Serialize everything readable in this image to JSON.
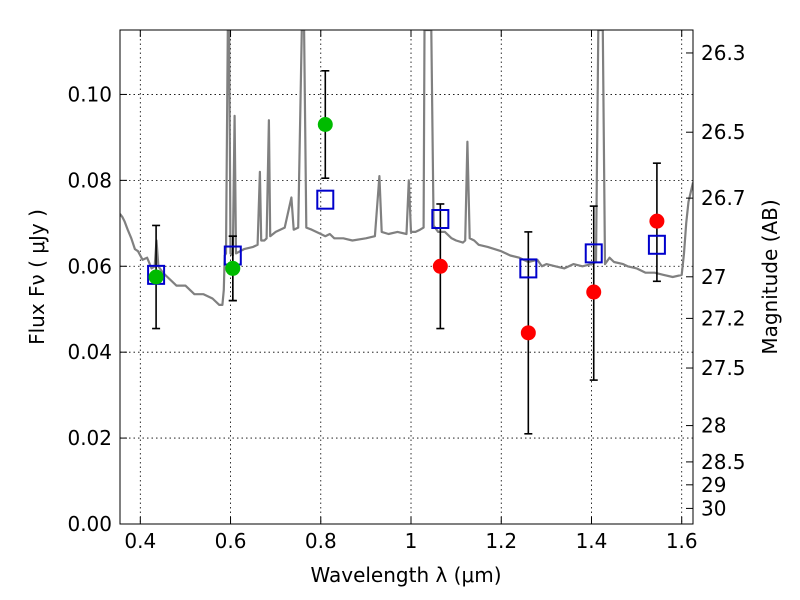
{
  "chart_data": {
    "type": "scatter",
    "xlabel": "Wavelength  λ (μm)",
    "ylabel": "Flux  Fν  ( μJy )",
    "y2label": "Magnitude (AB)",
    "xlim": [
      0.355,
      1.625
    ],
    "ylim": [
      0.0,
      0.115
    ],
    "grid": true,
    "x_ticks": [
      {
        "value": 0.4,
        "label": "0.4"
      },
      {
        "value": 0.6,
        "label": "0.6"
      },
      {
        "value": 0.8,
        "label": "0.8"
      },
      {
        "value": 1.0,
        "label": "1"
      },
      {
        "value": 1.2,
        "label": "1.2"
      },
      {
        "value": 1.4,
        "label": "1.4"
      },
      {
        "value": 1.6,
        "label": "1.6"
      }
    ],
    "y_ticks": [
      {
        "value": 0.0,
        "label": "0.00"
      },
      {
        "value": 0.02,
        "label": "0.02"
      },
      {
        "value": 0.04,
        "label": "0.04"
      },
      {
        "value": 0.06,
        "label": "0.06"
      },
      {
        "value": 0.08,
        "label": "0.08"
      },
      {
        "value": 0.1,
        "label": "0.10"
      }
    ],
    "y2_ticks": [
      {
        "mag": 26.3,
        "label": "26.3"
      },
      {
        "mag": 26.5,
        "label": "26.5"
      },
      {
        "mag": 26.7,
        "label": "26.7"
      },
      {
        "mag": 27.0,
        "label": "27"
      },
      {
        "mag": 27.2,
        "label": "27.2"
      },
      {
        "mag": 27.5,
        "label": "27.5"
      },
      {
        "mag": 28.0,
        "label": "28"
      },
      {
        "mag": 28.5,
        "label": "28.5"
      },
      {
        "mag": 29.0,
        "label": "29"
      },
      {
        "mag": 30.0,
        "label": "30"
      }
    ],
    "colors": {
      "model": "#808080",
      "green": "#00bb00",
      "red": "#ff0000",
      "box": "#0000cc",
      "errorbar": "#000000"
    },
    "model_spectrum": [
      [
        0.355,
        0.0722
      ],
      [
        0.36,
        0.0715
      ],
      [
        0.365,
        0.0705
      ],
      [
        0.372,
        0.0685
      ],
      [
        0.38,
        0.0665
      ],
      [
        0.388,
        0.064
      ],
      [
        0.395,
        0.0635
      ],
      [
        0.405,
        0.0615
      ],
      [
        0.415,
        0.062
      ],
      [
        0.425,
        0.0595
      ],
      [
        0.432,
        0.06
      ],
      [
        0.436,
        0.066
      ],
      [
        0.44,
        0.06
      ],
      [
        0.45,
        0.0585
      ],
      [
        0.46,
        0.0575
      ],
      [
        0.48,
        0.0555
      ],
      [
        0.5,
        0.0555
      ],
      [
        0.52,
        0.0535
      ],
      [
        0.54,
        0.0535
      ],
      [
        0.56,
        0.0525
      ],
      [
        0.575,
        0.051
      ],
      [
        0.582,
        0.051
      ],
      [
        0.585,
        0.0545
      ],
      [
        0.587,
        0.0625
      ],
      [
        0.59,
        0.063
      ],
      [
        0.594,
        0.115
      ],
      [
        0.597,
        0.115
      ],
      [
        0.6,
        0.063
      ],
      [
        0.605,
        0.0625
      ],
      [
        0.609,
        0.095
      ],
      [
        0.612,
        0.063
      ],
      [
        0.63,
        0.064
      ],
      [
        0.65,
        0.0645
      ],
      [
        0.66,
        0.065
      ],
      [
        0.665,
        0.082
      ],
      [
        0.668,
        0.066
      ],
      [
        0.675,
        0.066
      ],
      [
        0.68,
        0.0665
      ],
      [
        0.685,
        0.094
      ],
      [
        0.688,
        0.067
      ],
      [
        0.7,
        0.068
      ],
      [
        0.72,
        0.069
      ],
      [
        0.735,
        0.076
      ],
      [
        0.74,
        0.0685
      ],
      [
        0.75,
        0.069
      ],
      [
        0.758,
        0.115
      ],
      [
        0.763,
        0.115
      ],
      [
        0.768,
        0.069
      ],
      [
        0.78,
        0.0685
      ],
      [
        0.79,
        0.068
      ],
      [
        0.8,
        0.0675
      ],
      [
        0.81,
        0.067
      ],
      [
        0.82,
        0.0675
      ],
      [
        0.83,
        0.0665
      ],
      [
        0.85,
        0.0665
      ],
      [
        0.87,
        0.066
      ],
      [
        0.9,
        0.0665
      ],
      [
        0.92,
        0.067
      ],
      [
        0.93,
        0.081
      ],
      [
        0.935,
        0.068
      ],
      [
        0.95,
        0.0675
      ],
      [
        0.97,
        0.068
      ],
      [
        0.99,
        0.0675
      ],
      [
        0.995,
        0.08
      ],
      [
        1.0,
        0.068
      ],
      [
        1.01,
        0.068
      ],
      [
        1.02,
        0.0685
      ],
      [
        1.028,
        0.069
      ],
      [
        1.03,
        0.115
      ],
      [
        1.036,
        0.115
      ],
      [
        1.04,
        0.115
      ],
      [
        1.045,
        0.115
      ],
      [
        1.05,
        0.0695
      ],
      [
        1.06,
        0.068
      ],
      [
        1.075,
        0.068
      ],
      [
        1.09,
        0.0665
      ],
      [
        1.1,
        0.066
      ],
      [
        1.115,
        0.0655
      ],
      [
        1.12,
        0.066
      ],
      [
        1.125,
        0.089
      ],
      [
        1.13,
        0.0665
      ],
      [
        1.14,
        0.066
      ],
      [
        1.15,
        0.065
      ],
      [
        1.17,
        0.0645
      ],
      [
        1.2,
        0.0635
      ],
      [
        1.22,
        0.0625
      ],
      [
        1.24,
        0.062
      ],
      [
        1.26,
        0.061
      ],
      [
        1.28,
        0.0615
      ],
      [
        1.29,
        0.06
      ],
      [
        1.3,
        0.0605
      ],
      [
        1.32,
        0.06
      ],
      [
        1.34,
        0.0595
      ],
      [
        1.36,
        0.0605
      ],
      [
        1.38,
        0.06
      ],
      [
        1.4,
        0.0605
      ],
      [
        1.41,
        0.061
      ],
      [
        1.415,
        0.115
      ],
      [
        1.425,
        0.115
      ],
      [
        1.43,
        0.0605
      ],
      [
        1.44,
        0.062
      ],
      [
        1.45,
        0.061
      ],
      [
        1.47,
        0.0605
      ],
      [
        1.48,
        0.06
      ],
      [
        1.5,
        0.0595
      ],
      [
        1.52,
        0.0585
      ],
      [
        1.54,
        0.0585
      ],
      [
        1.56,
        0.058
      ],
      [
        1.58,
        0.0575
      ],
      [
        1.6,
        0.058
      ],
      [
        1.605,
        0.063
      ],
      [
        1.61,
        0.07
      ],
      [
        1.615,
        0.075
      ],
      [
        1.625,
        0.0795
      ]
    ],
    "points": [
      {
        "x": 0.435,
        "y": 0.0575,
        "type": "green"
      },
      {
        "x": 0.605,
        "y": 0.0595,
        "type": "green",
        "yerr": [
          0.0075,
          0.0075
        ]
      },
      {
        "x": 0.81,
        "y": 0.093,
        "type": "green",
        "yerr": [
          0.0125,
          0.0125
        ]
      },
      {
        "x": 1.065,
        "y": 0.06,
        "type": "red"
      },
      {
        "x": 1.26,
        "y": 0.0445,
        "type": "red"
      },
      {
        "x": 1.405,
        "y": 0.054,
        "type": "red"
      },
      {
        "x": 1.545,
        "y": 0.0705,
        "type": "red"
      }
    ],
    "model_boxes": [
      {
        "x": 0.435,
        "y": 0.058,
        "yerr": [
          0.0125,
          0.0115
        ]
      },
      {
        "x": 0.605,
        "y": 0.0625,
        "yerr": [
          0.0105,
          0.0045
        ]
      },
      {
        "x": 0.81,
        "y": 0.0755
      },
      {
        "x": 1.065,
        "y": 0.071,
        "yerr": [
          0.0255,
          0.0035
        ]
      },
      {
        "x": 1.26,
        "y": 0.0595,
        "yerr": [
          0.0385,
          0.0085
        ]
      },
      {
        "x": 1.405,
        "y": 0.063,
        "yerr": [
          0.0295,
          0.011
        ]
      },
      {
        "x": 1.545,
        "y": 0.065,
        "yerr": [
          0.0085,
          0.019
        ]
      }
    ]
  }
}
